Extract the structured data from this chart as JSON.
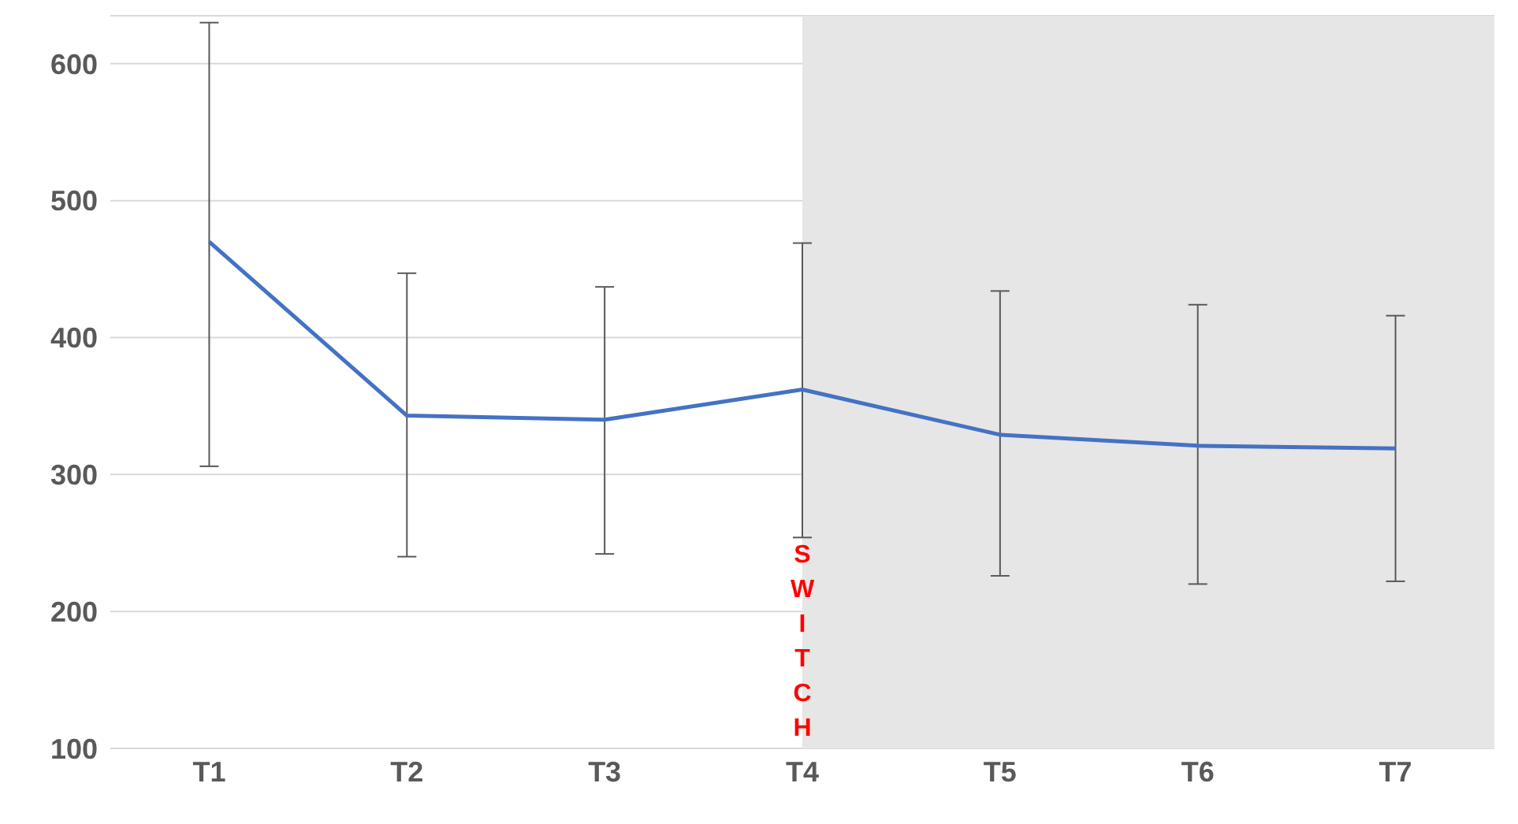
{
  "chart_data": {
    "type": "line",
    "categories": [
      "T1",
      "T2",
      "T3",
      "T4",
      "T5",
      "T6",
      "T7"
    ],
    "series": [
      {
        "color": "#4472c4",
        "values": [
          470,
          343,
          340,
          362,
          329,
          321,
          319
        ],
        "errors": [
          [
            306,
            630
          ],
          [
            240,
            447
          ],
          [
            242,
            437
          ],
          [
            254,
            469
          ],
          [
            226,
            434
          ],
          [
            220,
            424
          ],
          [
            222,
            416
          ]
        ]
      }
    ],
    "ylim": [
      100,
      635
    ],
    "yticks": [
      100,
      200,
      300,
      400,
      500,
      600
    ],
    "grid": "y",
    "marker": "none",
    "legend": false,
    "bands": [
      {
        "axis": "x",
        "from": "T4",
        "to": "T7",
        "label": "SWITCH",
        "color": "#e7e6e6"
      }
    ]
  }
}
